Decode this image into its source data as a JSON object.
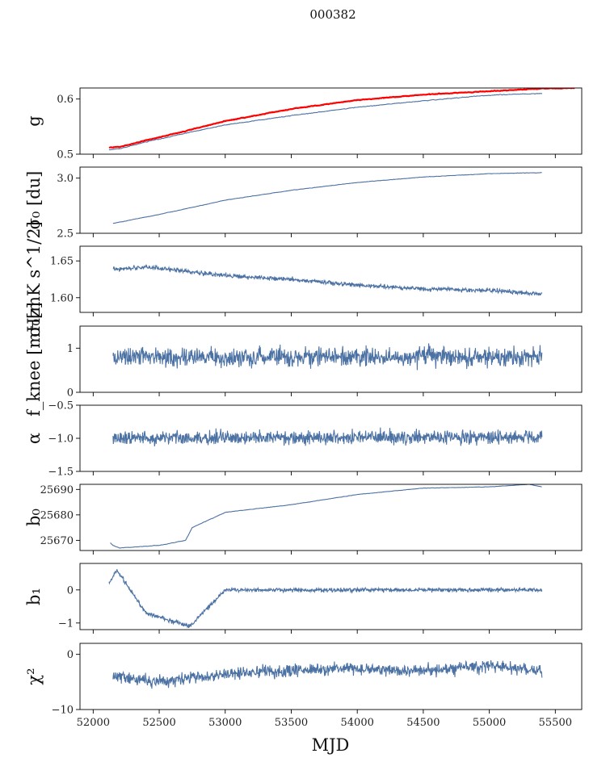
{
  "figure_title": "000382",
  "colors": {
    "series": "#4c72a4",
    "reference": "#ff0000",
    "axes": "#000000"
  },
  "chart_data": [
    {
      "type": "line",
      "ylabel": "g",
      "ylabel_display": "g",
      "ylim": [
        0.5,
        0.62
      ],
      "yticks": [
        0.5,
        0.6
      ],
      "ytick_labels": [
        "0.5",
        "0.6"
      ],
      "series": [
        {
          "name": "g",
          "color": "#4c72a4",
          "x": [
            52120,
            52200,
            52400,
            52700,
            53000,
            53500,
            54000,
            54500,
            55000,
            55400
          ],
          "values": [
            0.508,
            0.51,
            0.522,
            0.538,
            0.553,
            0.57,
            0.585,
            0.597,
            0.607,
            0.61
          ]
        },
        {
          "name": "reference",
          "color": "#ff0000",
          "x": [
            52120,
            52200,
            52400,
            52700,
            53000,
            53500,
            54000,
            54500,
            55000,
            55400,
            55650
          ],
          "values": [
            0.512,
            0.513,
            0.525,
            0.542,
            0.56,
            0.582,
            0.598,
            0.608,
            0.614,
            0.619,
            0.62
          ]
        }
      ]
    },
    {
      "type": "line",
      "ylabel": "sigma_0 [du]",
      "ylabel_display": "σ₀ [du]",
      "ylim": [
        2.5,
        3.1
      ],
      "yticks": [
        2.5,
        3.0
      ],
      "ytick_labels": [
        "2.5",
        "3.0"
      ],
      "series": [
        {
          "name": "sigma_0 [du]",
          "color": "#4c72a4",
          "x": [
            52150,
            52500,
            53000,
            53500,
            54000,
            54500,
            55000,
            55400
          ],
          "values": [
            2.59,
            2.67,
            2.8,
            2.89,
            2.96,
            3.01,
            3.04,
            3.05
          ]
        }
      ]
    },
    {
      "type": "line",
      "ylabel": "sigma_0 [mK s^1/2]",
      "ylabel_display": "σ₀[mK s^1/2]",
      "ylim": [
        1.58,
        1.67
      ],
      "yticks": [
        1.6,
        1.65
      ],
      "ytick_labels": [
        "1.60",
        "1.65"
      ],
      "series": [
        {
          "name": "sigma_0 [mK s^1/2]",
          "color": "#4c72a4",
          "x": [
            52150,
            52400,
            53000,
            53500,
            54000,
            54500,
            55000,
            55400
          ],
          "values": [
            1.638,
            1.642,
            1.63,
            1.625,
            1.617,
            1.612,
            1.61,
            1.605
          ]
        }
      ]
    },
    {
      "type": "line",
      "ylabel": "f_knee [mHz]",
      "ylabel_display": "f_knee [mHz]",
      "ylim": [
        0,
        1.5
      ],
      "yticks": [
        0,
        1
      ],
      "ytick_labels": [
        "0",
        "1"
      ],
      "series": [
        {
          "name": "f_knee [mHz]",
          "color": "#4c72a4",
          "x": [
            52150,
            55400
          ],
          "values": [
            0.8,
            0.8
          ]
        }
      ]
    },
    {
      "type": "line",
      "ylabel": "alpha",
      "ylabel_display": "α",
      "ylim": [
        -1.5,
        -0.5
      ],
      "yticks": [
        -1.5,
        -1.0,
        -0.5
      ],
      "ytick_labels": [
        "−1.5",
        "−1.0",
        "−0.5"
      ],
      "series": [
        {
          "name": "alpha",
          "color": "#4c72a4",
          "x": [
            52150,
            55400
          ],
          "values": [
            -1.0,
            -0.98
          ]
        }
      ]
    },
    {
      "type": "line",
      "ylabel": "b_0",
      "ylabel_display": "b₀",
      "ylim": [
        25666,
        25692
      ],
      "yticks": [
        25670,
        25680,
        25690
      ],
      "ytick_labels": [
        "25670",
        "25680",
        "25690"
      ],
      "series": [
        {
          "name": "b_0",
          "color": "#4c72a4",
          "x": [
            52130,
            52150,
            52200,
            52500,
            52700,
            52750,
            53000,
            53500,
            54000,
            54500,
            55000,
            55300,
            55400
          ],
          "values": [
            25669,
            25668,
            25667,
            25668,
            25670,
            25675,
            25681,
            25684,
            25688,
            25690.5,
            25691,
            25692,
            25691
          ]
        }
      ]
    },
    {
      "type": "line",
      "ylabel": "b_1",
      "ylabel_display": "b₁",
      "ylim": [
        -1.2,
        0.8
      ],
      "yticks": [
        -1,
        0
      ],
      "ytick_labels": [
        "−1",
        "0"
      ],
      "series": [
        {
          "name": "b_1",
          "color": "#4c72a4",
          "x": [
            52120,
            52180,
            52400,
            52730,
            53000,
            54000,
            55000,
            55400
          ],
          "values": [
            0.2,
            0.6,
            -0.7,
            -1.1,
            0.0,
            0.0,
            0.0,
            0.0
          ]
        }
      ]
    },
    {
      "type": "line",
      "ylabel": "chi^2",
      "ylabel_display": "χ²",
      "ylim": [
        -10,
        2
      ],
      "yticks": [
        -10,
        0
      ],
      "ytick_labels": [
        "−10",
        "0"
      ],
      "series": [
        {
          "name": "chi^2",
          "color": "#4c72a4",
          "x": [
            52150,
            52500,
            53000,
            53500,
            54000,
            54500,
            55000,
            55400
          ],
          "values": [
            -4,
            -5,
            -3.5,
            -3,
            -2.5,
            -3,
            -2,
            -3
          ]
        }
      ]
    }
  ],
  "x_axis": {
    "label": "MJD",
    "xlim": [
      51900,
      55700
    ],
    "ticks": [
      52000,
      52500,
      53000,
      53500,
      54000,
      54500,
      55000,
      55500
    ],
    "tick_labels": [
      "52000",
      "52500",
      "53000",
      "53500",
      "54000",
      "54500",
      "55000",
      "55500"
    ]
  }
}
